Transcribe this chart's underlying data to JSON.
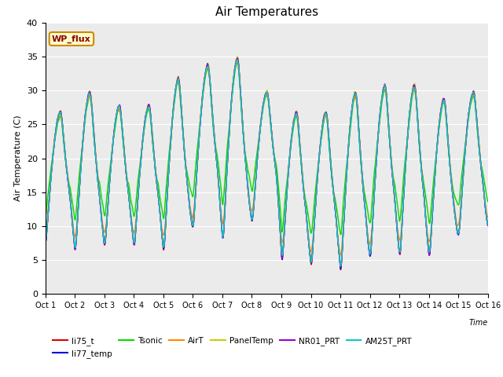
{
  "title": "Air Temperatures",
  "ylabel": "Air Temperature (C)",
  "xlabel": "Time",
  "ylim": [
    0,
    40
  ],
  "series_order": [
    "li75_t",
    "li77_temp",
    "Tsonic",
    "AirT",
    "PanelTemp",
    "NR01_PRT",
    "AM25T_PRT"
  ],
  "series": {
    "li75_t": {
      "color": "#dd0000",
      "lw": 1.0
    },
    "li77_temp": {
      "color": "#0000dd",
      "lw": 1.0
    },
    "Tsonic": {
      "color": "#00dd00",
      "lw": 1.0
    },
    "AirT": {
      "color": "#ff8800",
      "lw": 1.0
    },
    "PanelTemp": {
      "color": "#cccc00",
      "lw": 1.0
    },
    "NR01_PRT": {
      "color": "#9900cc",
      "lw": 1.0
    },
    "AM25T_PRT": {
      "color": "#00cccc",
      "lw": 1.0
    }
  },
  "legend_box_color": "#ffffcc",
  "legend_box_edge": "#cc8800",
  "legend_text": "WP_flux",
  "x_tick_labels": [
    "Oct 1",
    "Oct 2",
    "Oct 3",
    "Oct 4",
    "Oct 5",
    "Oct 6",
    "Oct 7",
    "Oct 8",
    "Oct 9",
    "Oct 10",
    "Oct 11",
    "Oct 12",
    "Oct 13",
    "Oct 14",
    "Oct 15",
    "Oct 16"
  ],
  "yticks": [
    0,
    5,
    10,
    15,
    20,
    25,
    30,
    35,
    40
  ],
  "plot_bg": "#ebebeb",
  "fig_bg": "#ffffff",
  "grid_color": "#ffffff",
  "day_max_temps": [
    27,
    30,
    28,
    28,
    32,
    34,
    35,
    30,
    27,
    27,
    30,
    31,
    31,
    29,
    30
  ],
  "day_min_temps": [
    6,
    4,
    5,
    5,
    4,
    8,
    5,
    9,
    2,
    2,
    1,
    3,
    3,
    3,
    7
  ]
}
